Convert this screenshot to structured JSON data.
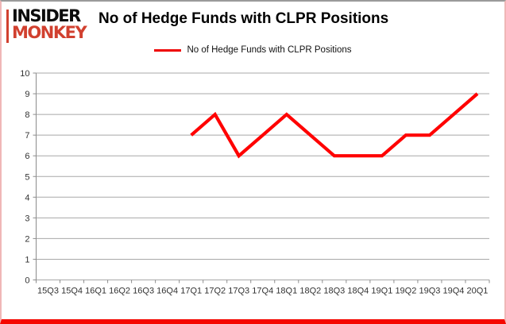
{
  "brand": {
    "line1": "INSIDER",
    "line2": "MONKEY",
    "accent_color": "#d1402f"
  },
  "header": {
    "title": "No of Hedge Funds with CLPR Positions"
  },
  "legend": {
    "label": "No of Hedge Funds with CLPR Positions",
    "color": "#ee0000"
  },
  "chart_data": {
    "type": "line",
    "title": "No of Hedge Funds with CLPR Positions",
    "categories": [
      "15Q3",
      "15Q4",
      "16Q1",
      "16Q2",
      "16Q3",
      "16Q4",
      "17Q1",
      "17Q2",
      "17Q3",
      "17Q4",
      "18Q1",
      "18Q2",
      "18Q3",
      "18Q4",
      "19Q1",
      "19Q2",
      "19Q3",
      "19Q4",
      "20Q1"
    ],
    "series": [
      {
        "name": "No of Hedge Funds with CLPR Positions",
        "color": "#ff0000",
        "values": [
          null,
          null,
          null,
          null,
          null,
          null,
          7,
          8,
          6,
          7,
          8,
          7,
          6,
          6,
          6,
          7,
          7,
          8,
          9
        ]
      }
    ],
    "xlabel": "",
    "ylabel": "",
    "ylim": [
      0,
      10
    ],
    "ytick_step": 1,
    "grid": true,
    "legend_position": "top"
  },
  "colors": {
    "grid": "#a8a8a8",
    "axis": "#8c8c8c",
    "tick_label": "#333333",
    "line": "#ff0000",
    "border_top": "#9a9a9a",
    "border_side": "#f0b7b7",
    "border_bottom": "#f50800"
  }
}
